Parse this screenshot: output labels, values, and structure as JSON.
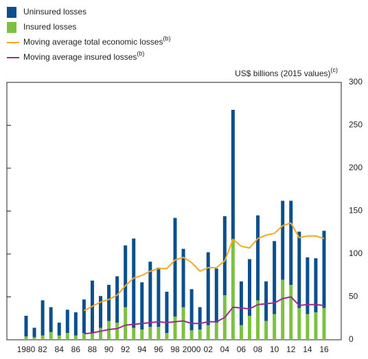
{
  "chart_data": {
    "type": "bar",
    "y_label": "US$ billions (2015 values)",
    "y_label_note": "(c)",
    "categories": [
      "1980",
      null,
      "82",
      null,
      "84",
      null,
      "86",
      null,
      "88",
      null,
      "90",
      null,
      "92",
      null,
      "94",
      null,
      "96",
      null,
      "98",
      null,
      "2000",
      null,
      "02",
      null,
      "04",
      null,
      "06",
      null,
      "08",
      null,
      "10",
      null,
      "12",
      null,
      "14",
      null,
      "16"
    ],
    "series": [
      {
        "name": "Uninsured losses",
        "type": "bar",
        "color": "#0b4f8c",
        "values": [
          24,
          11,
          41,
          29,
          15,
          27,
          27,
          39,
          61,
          37,
          42,
          54,
          72,
          104,
          55,
          76,
          69,
          48,
          115,
          68,
          48,
          26,
          85,
          63,
          92,
          151,
          51,
          66,
          99,
          46,
          85,
          92,
          98,
          89,
          66,
          63,
          90
        ]
      },
      {
        "name": "Insured losses",
        "type": "bar",
        "color": "#7cc143",
        "values": [
          4,
          3,
          5,
          9,
          5,
          8,
          5,
          8,
          8,
          14,
          22,
          20,
          38,
          14,
          12,
          15,
          15,
          8,
          27,
          38,
          11,
          12,
          17,
          20,
          52,
          117,
          17,
          28,
          46,
          22,
          30,
          70,
          64,
          37,
          30,
          32,
          37
        ]
      },
      {
        "name": "Moving average total economic losses",
        "name_note": "(b)",
        "type": "line",
        "color": "#f5a623",
        "values": [
          null,
          null,
          null,
          null,
          null,
          null,
          null,
          34,
          39,
          44,
          47,
          52,
          63,
          72,
          75,
          80,
          83,
          83,
          93,
          96,
          90,
          80,
          84,
          84,
          92,
          117,
          109,
          107,
          118,
          122,
          124,
          133,
          136,
          119,
          121,
          121,
          118
        ]
      },
      {
        "name": "Moving average insured losses",
        "name_note": "(b)",
        "type": "line",
        "color": "#9b2c8e",
        "values": [
          null,
          null,
          null,
          null,
          null,
          null,
          null,
          7,
          8,
          10,
          12,
          13,
          17,
          18,
          19,
          20,
          21,
          20,
          21,
          22,
          19,
          19,
          21,
          21,
          26,
          38,
          37,
          36,
          41,
          42,
          43,
          48,
          50,
          40,
          41,
          41,
          40
        ]
      }
    ],
    "ylim": [
      0,
      300
    ],
    "yticks": [
      0,
      50,
      100,
      150,
      200,
      250,
      300
    ],
    "grid": false
  }
}
